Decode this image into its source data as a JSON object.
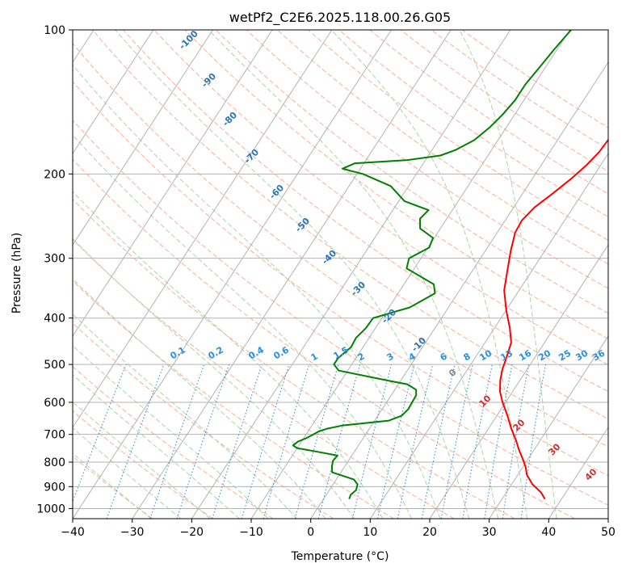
{
  "chart_data": {
    "type": "line",
    "subtype": "skew-t log-p diagram",
    "title": "wetPf2_C2E6.2025.118.00.26.G05",
    "xlabel": "Temperature (°C)",
    "ylabel": "Pressure (hPa)",
    "xlim": [
      -40,
      50
    ],
    "ylim": [
      1050,
      100
    ],
    "y_scale": "log",
    "x_ticks": [
      -40,
      -30,
      -20,
      -10,
      0,
      10,
      20,
      30,
      40,
      50
    ],
    "y_ticks": [
      100,
      200,
      300,
      400,
      500,
      600,
      700,
      800,
      900,
      1000
    ],
    "grid": true,
    "series": [
      {
        "color": "#ff0000",
        "points": [
          [
            37.2,
            955
          ],
          [
            35.8,
            925
          ],
          [
            33.5,
            890
          ],
          [
            31.5,
            850
          ],
          [
            30.5,
            820
          ],
          [
            29.2,
            790
          ],
          [
            27.5,
            755
          ],
          [
            25.9,
            720
          ],
          [
            23.8,
            680
          ],
          [
            21.8,
            640
          ],
          [
            19.5,
            600
          ],
          [
            17.9,
            570
          ],
          [
            16.7,
            540
          ],
          [
            15.8,
            510
          ],
          [
            15.4,
            490
          ],
          [
            14.4,
            450
          ],
          [
            12.6,
            420
          ],
          [
            10.0,
            385
          ],
          [
            7.5,
            350
          ],
          [
            5.7,
            315
          ],
          [
            4.3,
            290
          ],
          [
            3.0,
            265
          ],
          [
            2.8,
            250
          ],
          [
            3.5,
            235
          ],
          [
            5.0,
            220
          ],
          [
            6.5,
            205
          ],
          [
            7.6,
            192
          ],
          [
            8.3,
            180
          ],
          [
            8.6,
            165
          ],
          [
            8.7,
            150
          ],
          [
            8.5,
            135
          ],
          [
            8.6,
            120
          ],
          [
            8.8,
            110
          ],
          [
            9.0,
            100
          ]
        ]
      },
      {
        "color": "#008000",
        "points": [
          [
            4.3,
            955
          ],
          [
            4.1,
            935
          ],
          [
            4.5,
            915
          ],
          [
            4.1,
            890
          ],
          [
            3.0,
            870
          ],
          [
            -1.5,
            840
          ],
          [
            -2.2,
            815
          ],
          [
            -2.6,
            795
          ],
          [
            -2.4,
            775
          ],
          [
            -6.5,
            760
          ],
          [
            -10.0,
            748
          ],
          [
            -11.0,
            738
          ],
          [
            -10.6,
            725
          ],
          [
            -9.5,
            712
          ],
          [
            -8.8,
            700
          ],
          [
            -8.2,
            690
          ],
          [
            -7.1,
            681
          ],
          [
            -5.0,
            671
          ],
          [
            2.4,
            655
          ],
          [
            4.0,
            640
          ],
          [
            4.4,
            620
          ],
          [
            4.3,
            600
          ],
          [
            4.2,
            580
          ],
          [
            3.6,
            565
          ],
          [
            1.5,
            550
          ],
          [
            -2.3,
            540
          ],
          [
            -11.5,
            515
          ],
          [
            -13.0,
            500
          ],
          [
            -13.0,
            485
          ],
          [
            -12.0,
            460
          ],
          [
            -12.2,
            440
          ],
          [
            -11.6,
            420
          ],
          [
            -11.5,
            400
          ],
          [
            -6.5,
            380
          ],
          [
            -3.8,
            355
          ],
          [
            -5.0,
            340
          ],
          [
            -11.3,
            315
          ],
          [
            -12.0,
            300
          ],
          [
            -9.8,
            285
          ],
          [
            -10.2,
            272
          ],
          [
            -13.4,
            260
          ],
          [
            -14.5,
            248
          ],
          [
            -14.0,
            238
          ],
          [
            -19.0,
            228
          ],
          [
            -23.0,
            212
          ],
          [
            -29.0,
            200
          ],
          [
            -33.0,
            195
          ],
          [
            -31.5,
            190
          ],
          [
            -23.0,
            187
          ],
          [
            -18.0,
            183
          ],
          [
            -16.0,
            178
          ],
          [
            -14.0,
            170
          ],
          [
            -12.8,
            160
          ],
          [
            -12.0,
            150
          ],
          [
            -11.5,
            140
          ],
          [
            -11.5,
            130
          ],
          [
            -11.0,
            120
          ],
          [
            -10.5,
            110
          ],
          [
            -9.8,
            100
          ]
        ]
      }
    ],
    "isotherm_labels": [
      "-100",
      "-90",
      "-80",
      "-70",
      "-60",
      "-50",
      "-40",
      "-30",
      "-20",
      "-10"
    ],
    "mixing_ratio_labels": [
      "0.1",
      "0.2",
      "0.4",
      "0.6",
      "1",
      "1.5",
      "2",
      "3",
      "4",
      "6",
      "8",
      "10",
      "13",
      "16",
      "20",
      "25",
      "30",
      "36"
    ],
    "moist_adiabat_labels": [
      "0",
      "10",
      "20",
      "30",
      "40"
    ]
  }
}
